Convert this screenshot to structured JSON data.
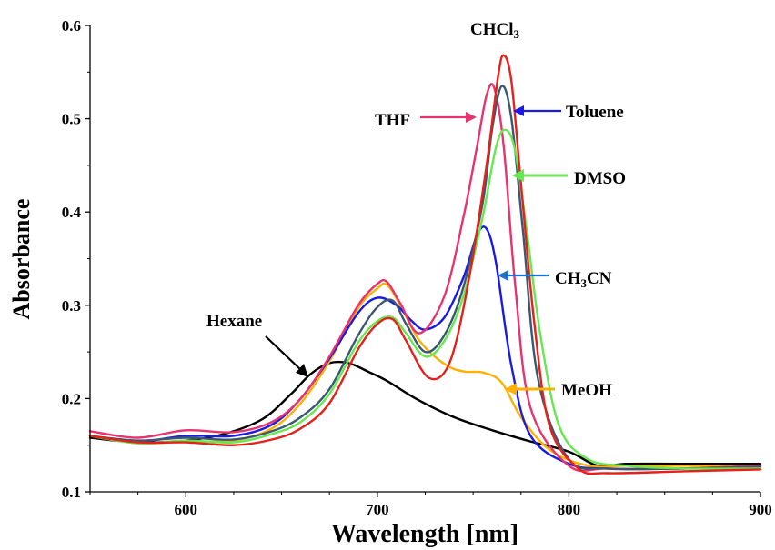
{
  "chart_data": {
    "type": "line",
    "xlabel": "Wavelength [nm]",
    "ylabel": "Absorbance",
    "xlim": [
      550,
      900
    ],
    "ylim": [
      0.1,
      0.6
    ],
    "xticks": [
      600,
      700,
      800,
      900
    ],
    "xtick_labels": [
      "600",
      "700",
      "800",
      "900"
    ],
    "yticks": [
      0.1,
      0.2,
      0.3,
      0.4,
      0.5,
      0.6
    ],
    "ytick_labels": [
      "0.1",
      "0.2",
      "0.3",
      "0.4",
      "0.5",
      "0.6"
    ],
    "grid": false,
    "legend": "none (inline arrow annotations)",
    "series": [
      {
        "name": "Hexane",
        "color": "#000000",
        "x": [
          550,
          575,
          600,
          620,
          640,
          655,
          665,
          675,
          685,
          695,
          705,
          720,
          740,
          760,
          780,
          800,
          815,
          830,
          860,
          900
        ],
        "y": [
          0.158,
          0.153,
          0.155,
          0.162,
          0.178,
          0.205,
          0.226,
          0.238,
          0.238,
          0.229,
          0.219,
          0.2,
          0.18,
          0.166,
          0.154,
          0.143,
          0.128,
          0.13,
          0.13,
          0.13
        ]
      },
      {
        "name": "MeOH",
        "color": "#FFB000",
        "x": [
          550,
          575,
          600,
          625,
          645,
          660,
          675,
          690,
          700,
          705,
          712,
          722,
          735,
          745,
          755,
          765,
          775,
          790,
          810,
          830,
          860,
          900
        ],
        "y": [
          0.16,
          0.152,
          0.154,
          0.155,
          0.168,
          0.195,
          0.24,
          0.297,
          0.318,
          0.322,
          0.3,
          0.262,
          0.237,
          0.229,
          0.228,
          0.217,
          0.18,
          0.145,
          0.128,
          0.128,
          0.128,
          0.128
        ]
      },
      {
        "name": "CH3CN",
        "color": "#1A1AE6",
        "x": [
          550,
          575,
          600,
          625,
          645,
          660,
          675,
          690,
          700,
          710,
          718,
          725,
          735,
          745,
          752,
          757,
          762,
          770,
          780,
          800,
          820,
          860,
          900
        ],
        "y": [
          0.16,
          0.154,
          0.16,
          0.16,
          0.172,
          0.2,
          0.243,
          0.292,
          0.308,
          0.3,
          0.283,
          0.274,
          0.287,
          0.33,
          0.375,
          0.382,
          0.345,
          0.235,
          0.16,
          0.13,
          0.125,
          0.125,
          0.128
        ]
      },
      {
        "name": "THF",
        "color": "#E8336E",
        "x": [
          550,
          575,
          600,
          625,
          645,
          660,
          675,
          690,
          700,
          705,
          712,
          722,
          735,
          745,
          752,
          757,
          761,
          766,
          772,
          780,
          800,
          820,
          860,
          900
        ],
        "y": [
          0.165,
          0.158,
          0.166,
          0.164,
          0.175,
          0.2,
          0.245,
          0.3,
          0.323,
          0.325,
          0.302,
          0.27,
          0.31,
          0.395,
          0.47,
          0.525,
          0.533,
          0.47,
          0.32,
          0.19,
          0.128,
          0.125,
          0.125,
          0.128
        ]
      },
      {
        "name": "Toluene",
        "color": "#3A5870",
        "x": [
          550,
          575,
          600,
          625,
          645,
          660,
          675,
          690,
          700,
          708,
          715,
          725,
          735,
          745,
          755,
          760,
          765,
          770,
          776,
          784,
          800,
          820,
          860,
          900
        ],
        "y": [
          0.16,
          0.155,
          0.158,
          0.156,
          0.165,
          0.18,
          0.21,
          0.268,
          0.298,
          0.305,
          0.28,
          0.25,
          0.268,
          0.32,
          0.41,
          0.49,
          0.535,
          0.5,
          0.38,
          0.22,
          0.135,
          0.125,
          0.125,
          0.127
        ]
      },
      {
        "name": "DMSO",
        "color": "#66E84F",
        "x": [
          550,
          575,
          600,
          625,
          645,
          660,
          675,
          690,
          700,
          708,
          715,
          725,
          735,
          745,
          755,
          762,
          767,
          772,
          778,
          785,
          795,
          810,
          830,
          860,
          900
        ],
        "y": [
          0.16,
          0.152,
          0.155,
          0.153,
          0.162,
          0.175,
          0.205,
          0.26,
          0.283,
          0.287,
          0.27,
          0.245,
          0.262,
          0.31,
          0.395,
          0.47,
          0.488,
          0.465,
          0.38,
          0.27,
          0.17,
          0.135,
          0.128,
          0.125,
          0.125
        ]
      },
      {
        "name": "CHCl3",
        "color": "#E8201A",
        "x": [
          550,
          575,
          600,
          625,
          645,
          660,
          675,
          690,
          700,
          708,
          715,
          727,
          738,
          748,
          757,
          763,
          766,
          770,
          775,
          782,
          790,
          805,
          820,
          860,
          900
        ],
        "y": [
          0.16,
          0.153,
          0.153,
          0.15,
          0.156,
          0.168,
          0.195,
          0.253,
          0.28,
          0.285,
          0.262,
          0.222,
          0.24,
          0.33,
          0.45,
          0.545,
          0.568,
          0.54,
          0.43,
          0.28,
          0.17,
          0.125,
          0.12,
          0.122,
          0.124
        ]
      }
    ],
    "annotations": [
      {
        "text": "CHCl3",
        "base": "CHCl",
        "sub": "3"
      },
      {
        "text": "THF",
        "base": "THF",
        "sub": ""
      },
      {
        "text": "Toluene",
        "base": "Toluene",
        "sub": ""
      },
      {
        "text": "DMSO",
        "base": "DMSO",
        "sub": ""
      },
      {
        "text": "CH3CN",
        "base": "CH",
        "sub": "3",
        "rest": "CN"
      },
      {
        "text": "Hexane",
        "base": "Hexane",
        "sub": ""
      },
      {
        "text": "MeOH",
        "base": "MeOH",
        "sub": ""
      }
    ]
  }
}
